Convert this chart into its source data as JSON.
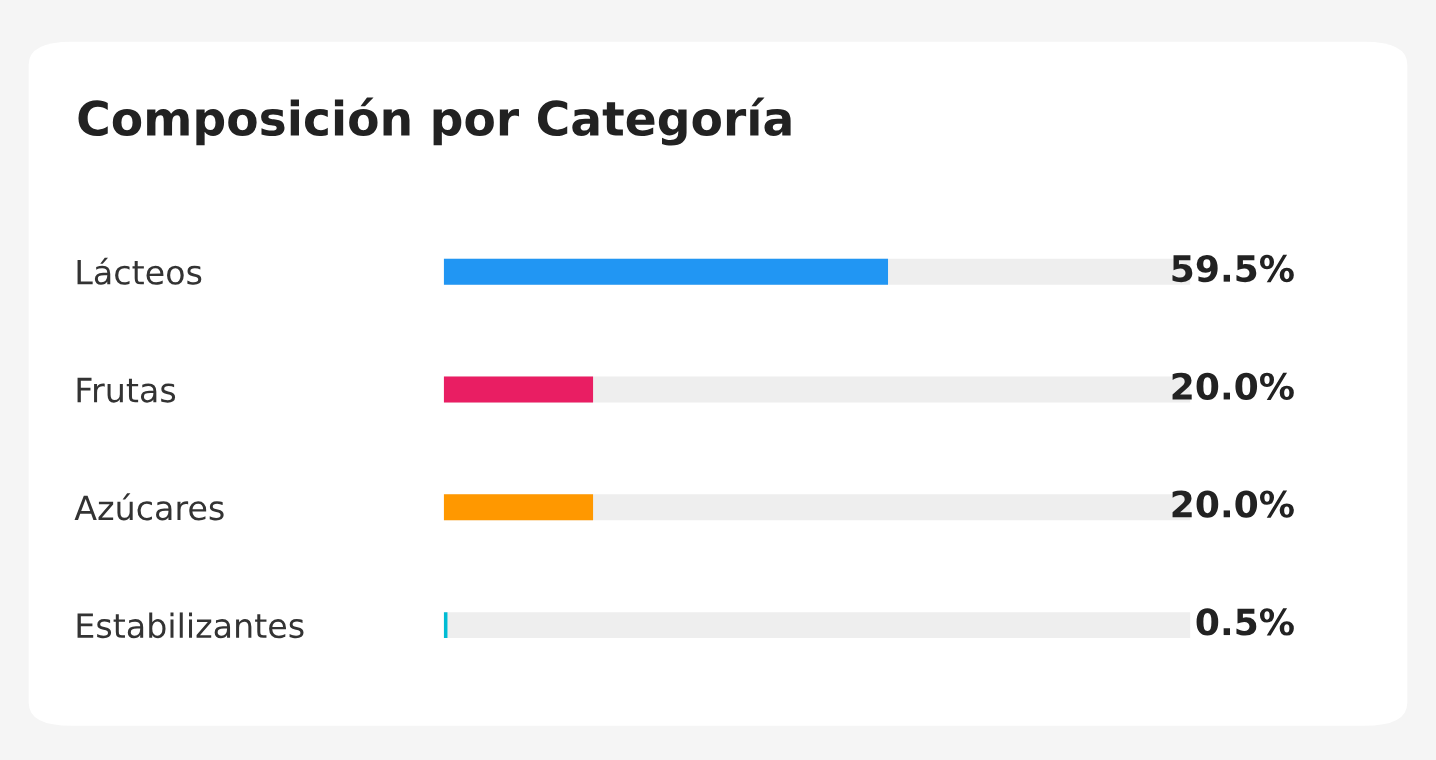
{
  "chart_data": {
    "type": "bar",
    "orientation": "horizontal",
    "title": "Composición por Categoría",
    "categories": [
      "Lácteos",
      "Frutas",
      "Azúcares",
      "Estabilizantes"
    ],
    "values": [
      59.5,
      20.0,
      20.0,
      0.5
    ],
    "colors": [
      "#2196f3",
      "#e91e63",
      "#ff9800",
      "#00bcd4"
    ],
    "value_labels": [
      "59.5%",
      "20.0%",
      "20.0%",
      "0.5%"
    ],
    "xlim": [
      0,
      100
    ],
    "tick_labels": "y",
    "grid": false,
    "legend": false
  }
}
